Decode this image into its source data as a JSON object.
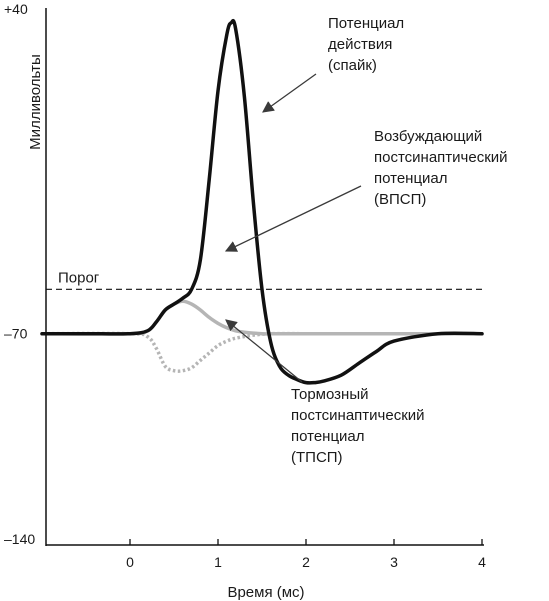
{
  "chart_data": {
    "type": "line",
    "ylabel": "Милливольты",
    "xlabel": "Время (мс)",
    "xlim": [
      -1,
      4
    ],
    "ylim": [
      -140,
      40
    ],
    "x_ticks": [
      {
        "value": 0,
        "label": "0"
      },
      {
        "value": 1,
        "label": "1"
      },
      {
        "value": 2,
        "label": "2"
      },
      {
        "value": 3,
        "label": "3"
      },
      {
        "value": 4,
        "label": "4"
      }
    ],
    "y_ticks": [
      {
        "value": 40,
        "label": "+40"
      },
      {
        "value": -70,
        "label": "–70"
      },
      {
        "value": -140,
        "label": "–140"
      }
    ],
    "threshold": {
      "value": -55,
      "label": "Порог"
    },
    "series": [
      {
        "key": "spike",
        "color": "#111111",
        "style": "solid",
        "x": [
          -1.0,
          -0.5,
          0.0,
          0.2,
          0.3,
          0.4,
          0.5,
          0.6,
          0.7,
          0.8,
          0.9,
          1.0,
          1.1,
          1.15,
          1.2,
          1.3,
          1.4,
          1.5,
          1.6,
          1.7,
          1.8,
          1.9,
          2.0,
          2.1,
          2.2,
          2.4,
          2.6,
          2.8,
          3.0,
          3.5,
          4.0
        ],
        "y": [
          -70.0,
          -70.0,
          -70.0,
          -69.0,
          -66.0,
          -62.0,
          -60.0,
          -58.0,
          -55.0,
          -45.0,
          -18.0,
          12.0,
          31.0,
          35.0,
          33.0,
          10.0,
          -25.0,
          -55.0,
          -73.0,
          -81.0,
          -84.0,
          -85.5,
          -86.5,
          -86.5,
          -86.0,
          -84.0,
          -80.0,
          -76.0,
          -72.5,
          -70.0,
          -70.0
        ]
      },
      {
        "key": "epsp",
        "color": "#b5b5b5",
        "style": "solid",
        "x": [
          -1.0,
          0.0,
          0.2,
          0.3,
          0.4,
          0.5,
          0.6,
          0.7,
          0.8,
          0.9,
          1.0,
          1.1,
          1.2,
          1.3,
          1.5,
          1.7,
          2.0,
          2.5,
          3.0,
          4.0
        ],
        "y": [
          -70.0,
          -70.0,
          -69.0,
          -66.0,
          -62.0,
          -60.0,
          -59.0,
          -60.0,
          -62.0,
          -64.5,
          -66.5,
          -68.0,
          -69.0,
          -69.5,
          -70.0,
          -70.0,
          -70.0,
          -70.0,
          -70.0,
          -70.0
        ]
      },
      {
        "key": "ipsp",
        "color": "#b5b5b5",
        "style": "dotted",
        "x": [
          -1.0,
          0.0,
          0.2,
          0.3,
          0.4,
          0.5,
          0.6,
          0.7,
          0.8,
          0.9,
          1.0,
          1.1,
          1.2,
          1.4,
          1.6,
          2.0,
          3.0
        ],
        "y": [
          -70.0,
          -70.0,
          -71.0,
          -75.0,
          -81.0,
          -82.5,
          -82.5,
          -81.5,
          -79.0,
          -76.5,
          -74.0,
          -72.5,
          -71.5,
          -70.5,
          -70.0,
          -70.0,
          -70.0
        ]
      }
    ],
    "annotations": [
      {
        "key": "spike",
        "lines": [
          "Потенциал",
          "действия",
          "(спайк)"
        ]
      },
      {
        "key": "epsp",
        "lines": [
          "Возбуждающий",
          "постсинаптический",
          "потенциал",
          "(ВПСП)"
        ]
      },
      {
        "key": "ipsp",
        "lines": [
          "Тормозный",
          "постсинаптический",
          "потенциал",
          "(ТПСП)"
        ]
      }
    ],
    "grid": false,
    "legend": "none"
  }
}
